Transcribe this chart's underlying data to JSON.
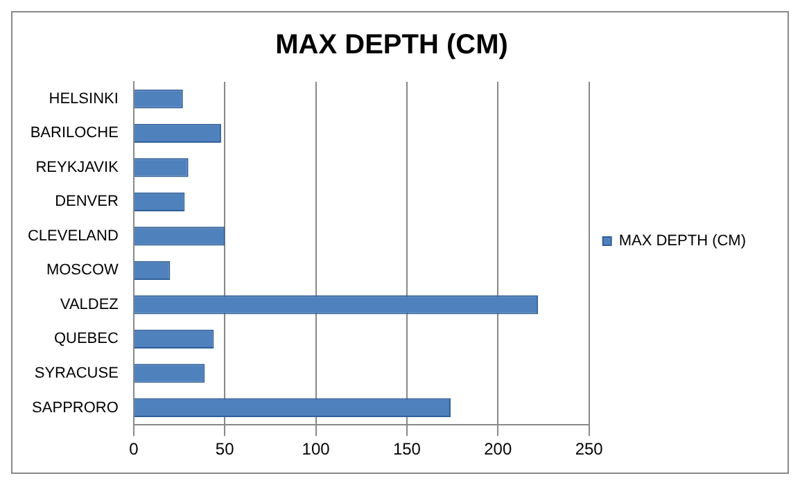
{
  "chart_data": {
    "type": "bar",
    "orientation": "horizontal",
    "title": "MAX DEPTH (CM)",
    "categories": [
      "HELSINKI",
      "BARILOCHE",
      "REYKJAVIK",
      "DENVER",
      "CLEVELAND",
      "MOSCOW",
      "VALDEZ",
      "QUEBEC",
      "SYRACUSE",
      "SAPPRORO"
    ],
    "series": [
      {
        "name": "MAX DEPTH (CM)",
        "color": "#4f81bd",
        "values": [
          27,
          48,
          30,
          28,
          50,
          20,
          222,
          44,
          39,
          174
        ]
      }
    ],
    "xlim": [
      0,
      250
    ],
    "xticks": [
      0,
      50,
      100,
      150,
      200,
      250
    ],
    "grid": "x",
    "legend": "right"
  }
}
